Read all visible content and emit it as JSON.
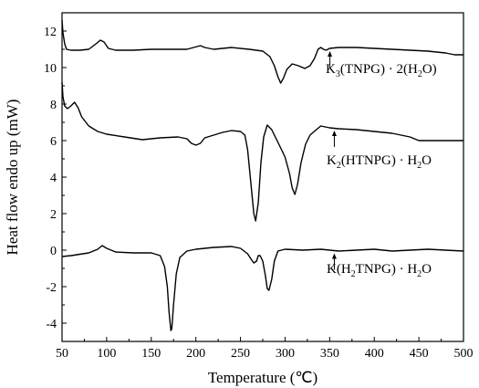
{
  "chart_data": {
    "type": "line",
    "xlabel": "Temperature (℃)",
    "ylabel": "Heat flow endo up (mW)",
    "xlim": [
      50,
      500
    ],
    "ylim": [
      -5,
      13
    ],
    "xticks": [
      50,
      100,
      150,
      200,
      250,
      300,
      350,
      400,
      450,
      500
    ],
    "yticks": [
      -4,
      -2,
      0,
      2,
      4,
      6,
      8,
      10,
      12
    ],
    "grid": false,
    "legend": "none",
    "line_color": "#000000",
    "series": [
      {
        "x": [
          50,
          51,
          53,
          55,
          60,
          70,
          80,
          88,
          93,
          97,
          102,
          110,
          130,
          150,
          170,
          190,
          205,
          210,
          220,
          240,
          260,
          275,
          283,
          288,
          292,
          295,
          298,
          302,
          308,
          315,
          322,
          328,
          333,
          337,
          340,
          343,
          346,
          350,
          360,
          380,
          400,
          420,
          440,
          460,
          480,
          490,
          500
        ],
        "y": [
          12.6,
          11.9,
          11.3,
          11.0,
          10.95,
          10.95,
          11.0,
          11.3,
          11.5,
          11.4,
          11.05,
          10.95,
          10.95,
          11.0,
          11.0,
          11.0,
          11.2,
          11.1,
          11.0,
          11.1,
          11.0,
          10.9,
          10.6,
          10.1,
          9.5,
          9.15,
          9.4,
          9.9,
          10.2,
          10.1,
          9.95,
          10.1,
          10.5,
          11.0,
          11.1,
          11.0,
          10.95,
          11.05,
          11.1,
          11.1,
          11.05,
          11.0,
          10.95,
          10.9,
          10.8,
          10.7,
          10.7
        ],
        "annotation": "K3(TNPG) · 2(H2O)",
        "annotation_x": 340
      },
      {
        "x": [
          50,
          51,
          53,
          56,
          60,
          64,
          68,
          72,
          80,
          90,
          100,
          120,
          140,
          160,
          180,
          190,
          195,
          200,
          205,
          210,
          220,
          230,
          240,
          250,
          255,
          258,
          262,
          265,
          267,
          270,
          273,
          276,
          280,
          285,
          290,
          295,
          300,
          305,
          308,
          311,
          314,
          318,
          323,
          328,
          335,
          340,
          345,
          350,
          360,
          380,
          400,
          420,
          440,
          450,
          460,
          480,
          500
        ],
        "y": [
          9.2,
          8.4,
          7.9,
          7.75,
          7.9,
          8.1,
          7.8,
          7.3,
          6.8,
          6.5,
          6.35,
          6.2,
          6.05,
          6.15,
          6.2,
          6.1,
          5.85,
          5.75,
          5.85,
          6.15,
          6.3,
          6.45,
          6.55,
          6.5,
          6.3,
          5.5,
          3.5,
          2.0,
          1.6,
          2.6,
          4.8,
          6.2,
          6.85,
          6.6,
          6.1,
          5.6,
          5.1,
          4.2,
          3.4,
          3.05,
          3.6,
          4.8,
          5.8,
          6.3,
          6.6,
          6.8,
          6.75,
          6.7,
          6.65,
          6.6,
          6.5,
          6.4,
          6.2,
          6.0,
          6.0,
          6.0,
          6.0
        ],
        "annotation": "K2(HTNPG) · H2O",
        "annotation_x": 345
      },
      {
        "x": [
          50,
          60,
          80,
          90,
          95,
          100,
          110,
          130,
          150,
          160,
          165,
          168,
          170,
          172,
          173,
          175,
          178,
          182,
          190,
          200,
          220,
          240,
          250,
          258,
          262,
          265,
          268,
          270,
          272,
          275,
          278,
          280,
          282,
          285,
          288,
          292,
          300,
          320,
          340,
          360,
          380,
          400,
          420,
          440,
          460,
          480,
          500
        ],
        "y": [
          -0.35,
          -0.3,
          -0.15,
          0.05,
          0.25,
          0.1,
          -0.1,
          -0.15,
          -0.15,
          -0.3,
          -0.9,
          -2.0,
          -3.4,
          -4.4,
          -4.3,
          -3.0,
          -1.3,
          -0.4,
          -0.05,
          0.05,
          0.15,
          0.2,
          0.1,
          -0.2,
          -0.5,
          -0.7,
          -0.6,
          -0.3,
          -0.3,
          -0.6,
          -1.4,
          -2.1,
          -2.2,
          -1.6,
          -0.6,
          -0.05,
          0.05,
          0.0,
          0.05,
          -0.05,
          0.0,
          0.05,
          -0.05,
          0.0,
          0.05,
          0.0,
          -0.05
        ],
        "annotation": "K(H2TNPG) · H2O",
        "annotation_x": 345
      }
    ]
  },
  "labels": {
    "s1_p1": "K",
    "s1_s1": "3",
    "s1_p2": "(TNPG) · 2(H",
    "s1_s2": "2",
    "s1_p3": "O)",
    "s2_p1": "K",
    "s2_s1": "2",
    "s2_p2": "(HTNPG) ·  H",
    "s2_s2": "2",
    "s2_p3": "O",
    "s3_p1": "K(H",
    "s3_s1": "2",
    "s3_p2": "TNPG) ·  H",
    "s3_s2": "2",
    "s3_p3": "O"
  }
}
